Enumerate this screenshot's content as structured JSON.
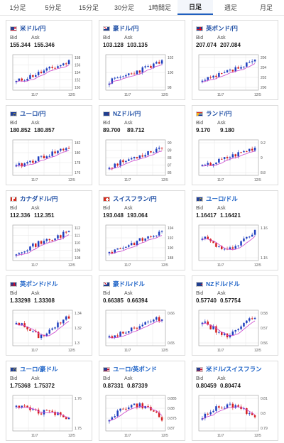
{
  "tabs": [
    {
      "label": "1分足",
      "active": false
    },
    {
      "label": "5分足",
      "active": false
    },
    {
      "label": "15分足",
      "active": false
    },
    {
      "label": "30分足",
      "active": false
    },
    {
      "label": "1時間足",
      "active": false
    },
    {
      "label": "日足",
      "active": true
    },
    {
      "label": "週足",
      "active": false
    },
    {
      "label": "月足",
      "active": false
    }
  ],
  "colors": {
    "up": "#1f3fbf",
    "down": "#d42020",
    "ma": "#cc44cc",
    "grid": "#e6e6e6",
    "border": "#999999",
    "title": "#1f4fa5",
    "tab_active_border": "#1f5fbf"
  },
  "labels": {
    "bid": "Bid",
    "ask": "Ask"
  },
  "cards": [
    {
      "id": "usdjpy",
      "title": "米ドル/円",
      "flag": "flag-us",
      "bid": "155.344",
      "ask": "155.346",
      "yticks": [
        "158",
        "156",
        "154",
        "152",
        "150"
      ],
      "xticks": [
        "11/7",
        "12/5"
      ],
      "seed": 11,
      "trend": "up"
    },
    {
      "id": "audjpy",
      "title": "豪ドル/円",
      "flag": "flag-au",
      "bid": "103.128",
      "ask": "103.135",
      "yticks": [
        "102",
        "100",
        "98"
      ],
      "xticks": [
        "11/7",
        "12/5"
      ],
      "seed": 23,
      "trend": "up"
    },
    {
      "id": "gbpjpy",
      "title": "英ポンド/円",
      "flag": "flag-gb",
      "bid": "207.074",
      "ask": "207.084",
      "yticks": [
        "206",
        "204",
        "202",
        "200"
      ],
      "xticks": [
        "11/7",
        "12/5"
      ],
      "seed": 37,
      "trend": "up"
    },
    {
      "id": "eurjpy",
      "title": "ユーロ/円",
      "flag": "flag-eu",
      "bid": "180.852",
      "ask": "180.857",
      "yticks": [
        "182",
        "180",
        "178",
        "176"
      ],
      "xticks": [
        "11/7",
        "12/5"
      ],
      "seed": 41,
      "trend": "up"
    },
    {
      "id": "nzdjpy",
      "title": "NZドル/円",
      "flag": "flag-nz",
      "bid": "89.700",
      "ask": "89.712",
      "yticks": [
        "90",
        "89",
        "88",
        "87",
        "86"
      ],
      "xticks": [
        "11/7",
        "12/5"
      ],
      "seed": 53,
      "trend": "up"
    },
    {
      "id": "zarjpy",
      "title": "ランド/円",
      "flag": "flag-za",
      "bid": "9.170",
      "ask": "9.180",
      "yticks": [
        "9.2",
        "9",
        "8.8"
      ],
      "xticks": [
        "11/7",
        "12/5"
      ],
      "seed": 67,
      "trend": "up"
    },
    {
      "id": "cadjpy",
      "title": "カナダドル/円",
      "flag": "flag-ca",
      "bid": "112.336",
      "ask": "112.351",
      "yticks": [
        "112",
        "111",
        "110",
        "109",
        "108"
      ],
      "xticks": [
        "11/7",
        "12/5"
      ],
      "seed": 71,
      "trend": "up"
    },
    {
      "id": "chfjpy",
      "title": "スイスフラン/円",
      "flag": "flag-ch",
      "bid": "193.048",
      "ask": "193.064",
      "yticks": [
        "194",
        "192",
        "190",
        "188"
      ],
      "xticks": [
        "11/7",
        "12/5"
      ],
      "seed": 83,
      "trend": "up"
    },
    {
      "id": "eurusd",
      "title": "ユーロ/ドル",
      "flag": "flag-eu",
      "bid": "1.16417",
      "ask": "1.16421",
      "yticks": [
        "1.16",
        "1.15"
      ],
      "xticks": [
        "11/7",
        "12/5"
      ],
      "seed": 97,
      "trend": "vup"
    },
    {
      "id": "gbpusd",
      "title": "英ポンド/ドル",
      "flag": "flag-gb",
      "bid": "1.33298",
      "ask": "1.33308",
      "yticks": [
        "1.34",
        "1.32",
        "1.3"
      ],
      "xticks": [
        "11/7",
        "12/5"
      ],
      "seed": 101,
      "trend": "vup"
    },
    {
      "id": "audusd",
      "title": "豪ドル/ドル",
      "flag": "flag-au",
      "bid": "0.66385",
      "ask": "0.66394",
      "yticks": [
        "0.66",
        "0.65"
      ],
      "xticks": [
        "11/7",
        "12/5"
      ],
      "seed": 113,
      "trend": "up"
    },
    {
      "id": "nzdusd",
      "title": "NZドル/ドル",
      "flag": "flag-nz",
      "bid": "0.57740",
      "ask": "0.57754",
      "yticks": [
        "0.58",
        "0.57",
        "0.56"
      ],
      "xticks": [
        "11/7",
        "12/5"
      ],
      "seed": 127,
      "trend": "vup"
    },
    {
      "id": "euraud",
      "title": "ユーロ/豪ドル",
      "flag": "flag-eu",
      "bid": "1.75368",
      "ask": "1.75372",
      "yticks": [
        "1.76",
        "1.75"
      ],
      "xticks": [
        "11/7",
        "12/5"
      ],
      "seed": 131,
      "trend": "down"
    },
    {
      "id": "eurgbp",
      "title": "ユーロ/英ポンド",
      "flag": "flag-us",
      "bid": "0.87331",
      "ask": "0.87339",
      "yticks": [
        "0.885",
        "0.88",
        "0.875",
        "0.87"
      ],
      "xticks": [
        "11/7",
        "12/5"
      ],
      "seed": 149,
      "trend": "hump"
    },
    {
      "id": "usdchf",
      "title": "米ドル/スイスフラン",
      "flag": "flag-us",
      "bid": "0.80459",
      "ask": "0.80474",
      "yticks": [
        "0.81",
        "0.8",
        "0.79"
      ],
      "xticks": [
        "11/7",
        "12/5"
      ],
      "seed": 157,
      "trend": "hump"
    }
  ]
}
